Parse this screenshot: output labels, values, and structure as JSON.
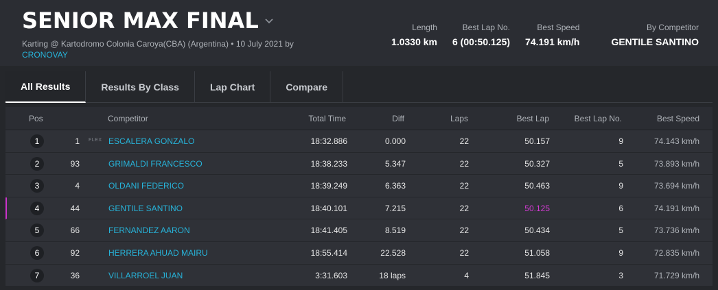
{
  "header": {
    "title": "SENIOR MAX FINAL",
    "subtitle_main": "Karting @ Kartodromo Colonia Caroya(CBA) (Argentina) • 10 July 2021 by",
    "subtitle_link": "CRONOVAY",
    "stats": [
      {
        "label": "Length",
        "value": "1.0330 km"
      },
      {
        "label": "Best Lap No.",
        "value": "6 (00:50.125)"
      },
      {
        "label": "Best Speed",
        "value": "74.191 km/h"
      },
      {
        "label": "By Competitor",
        "value": "GENTILE SANTINO"
      }
    ]
  },
  "tabs": [
    {
      "label": "All Results"
    },
    {
      "label": "Results By Class"
    },
    {
      "label": "Lap Chart"
    },
    {
      "label": "Compare"
    }
  ],
  "columns": {
    "pos": "Pos",
    "competitor": "Competitor",
    "total_time": "Total Time",
    "diff": "Diff",
    "laps": "Laps",
    "best_lap": "Best Lap",
    "best_lap_no": "Best Lap No.",
    "best_speed": "Best Speed"
  },
  "rows": [
    {
      "pos": "1",
      "num": "1",
      "tag": "FLEX",
      "competitor": "ESCALERA GONZALO",
      "total_time": "18:32.886",
      "diff": "0.000",
      "laps": "22",
      "best_lap": "50.157",
      "best_lap_no": "9",
      "best_speed": "74.143 km/h"
    },
    {
      "pos": "2",
      "num": "93",
      "tag": "",
      "competitor": "GRIMALDI FRANCESCO",
      "total_time": "18:38.233",
      "diff": "5.347",
      "laps": "22",
      "best_lap": "50.327",
      "best_lap_no": "5",
      "best_speed": "73.893 km/h"
    },
    {
      "pos": "3",
      "num": "4",
      "tag": "",
      "competitor": "OLDANI FEDERICO",
      "total_time": "18:39.249",
      "diff": "6.363",
      "laps": "22",
      "best_lap": "50.463",
      "best_lap_no": "9",
      "best_speed": "73.694 km/h"
    },
    {
      "pos": "4",
      "num": "44",
      "tag": "",
      "competitor": "GENTILE SANTINO",
      "total_time": "18:40.101",
      "diff": "7.215",
      "laps": "22",
      "best_lap": "50.125",
      "best_lap_no": "6",
      "best_speed": "74.191 km/h"
    },
    {
      "pos": "5",
      "num": "66",
      "tag": "",
      "competitor": "FERNANDEZ AARON",
      "total_time": "18:41.405",
      "diff": "8.519",
      "laps": "22",
      "best_lap": "50.434",
      "best_lap_no": "5",
      "best_speed": "73.736 km/h"
    },
    {
      "pos": "6",
      "num": "92",
      "tag": "",
      "competitor": "HERRERA AHUAD MAIRU",
      "total_time": "18:55.414",
      "diff": "22.528",
      "laps": "22",
      "best_lap": "51.058",
      "best_lap_no": "9",
      "best_speed": "72.835 km/h"
    },
    {
      "pos": "7",
      "num": "36",
      "tag": "",
      "competitor": "VILLARROEL JUAN",
      "total_time": "3:31.603",
      "diff": "18 laps",
      "laps": "4",
      "best_lap": "51.845",
      "best_lap_no": "3",
      "best_speed": "71.729 km/h"
    }
  ],
  "colors": {
    "accent_link": "#27b3d9",
    "best_lap_highlight": "#d33bd3",
    "background": "#25272b",
    "row_bg": "#2f3137"
  }
}
